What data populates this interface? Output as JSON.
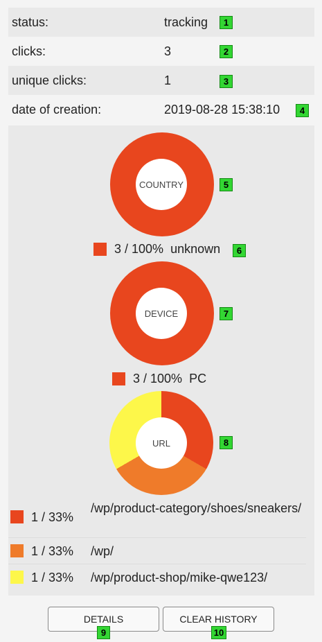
{
  "info": [
    {
      "key": "status:",
      "value": "tracking",
      "badge": "1"
    },
    {
      "key": "clicks:",
      "value": "3",
      "badge": "2"
    },
    {
      "key": "unique clicks:",
      "value": "1",
      "badge": "3"
    },
    {
      "key": "date of creation:",
      "value": "2019-08-28 15:38:10",
      "badge": "4"
    }
  ],
  "charts": {
    "country": {
      "label": "COUNTRY",
      "badge": "5",
      "legend_value": "3 / 100%",
      "legend_name": "unknown",
      "legend_badge": "6"
    },
    "device": {
      "label": "DEVICE",
      "badge": "7",
      "legend_value": "3 / 100%",
      "legend_name": "PC"
    },
    "url": {
      "label": "URL",
      "badge": "8"
    }
  },
  "url_rows": [
    {
      "value": "1 / 33%",
      "path": "/wp/product-category/shoes/sneakers/"
    },
    {
      "value": "1 / 33%",
      "path": "/wp/"
    },
    {
      "value": "1 / 33%",
      "path": "/wp/product-shop/mike-qwe123/"
    }
  ],
  "colors": {
    "red": "#e8461e",
    "orange": "#ef7b2a",
    "yellow": "#fdf74a",
    "badge": "#33d633"
  },
  "chart_data": [
    {
      "type": "pie",
      "title": "COUNTRY",
      "categories": [
        "unknown"
      ],
      "values": [
        3
      ]
    },
    {
      "type": "pie",
      "title": "DEVICE",
      "categories": [
        "PC"
      ],
      "values": [
        3
      ]
    },
    {
      "type": "pie",
      "title": "URL",
      "categories": [
        "/wp/product-category/shoes/sneakers/",
        "/wp/",
        "/wp/product-shop/mike-qwe123/"
      ],
      "values": [
        1,
        1,
        1
      ]
    }
  ],
  "buttons": {
    "details": "DETAILS",
    "details_badge": "9",
    "clear": "CLEAR HISTORY",
    "clear_badge": "10"
  }
}
